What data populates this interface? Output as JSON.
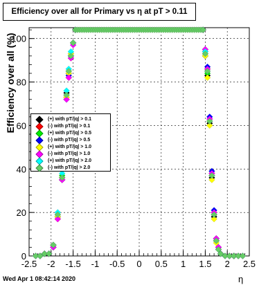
{
  "title": "Efficiency over all for Primary vs   η at pT > 0.11",
  "footer": "Wed Apr  1 08:42:14 2020",
  "chart_data": {
    "type": "scatter",
    "title": "Efficiency over all for Primary vs   η at pT > 0.11",
    "xlabel": "η",
    "ylabel": "Efficiency over all (%)",
    "xlim": [
      -2.5,
      2.5
    ],
    "ylim": [
      0,
      105
    ],
    "xticks": [
      "-2.5",
      "-2",
      "-1.5",
      "-1",
      "-0.5",
      "0",
      "0.5",
      "1",
      "1.5",
      "2",
      "2.5"
    ],
    "yticks": [
      "0",
      "20",
      "40",
      "60",
      "80",
      "100"
    ],
    "grid": true,
    "legend_position": "left-middle",
    "series": [
      {
        "name": "(+) with pT/|q| > 0.1",
        "color": "#000000",
        "x": [
          -2.35,
          -2.25,
          -2.15,
          -2.05,
          -1.95,
          -1.85,
          -1.75,
          -1.7,
          -1.65,
          -1.6,
          -1.55,
          -1.5,
          -1.45,
          1.45,
          1.5,
          1.55,
          1.6,
          1.65,
          1.7,
          1.75,
          1.8,
          1.85,
          1.95,
          2.05,
          2.15,
          2.25,
          2.35
        ],
        "y": [
          0,
          0,
          1,
          1,
          5,
          18,
          36,
          62,
          75,
          84,
          92,
          98,
          104,
          104,
          92,
          83,
          61,
          36,
          18,
          7,
          3,
          1,
          0,
          0,
          0,
          0,
          0
        ]
      },
      {
        "name": "(-) with pT/|q| > 0.1",
        "color": "#ff0000",
        "x": [
          -2.35,
          -2.25,
          -2.15,
          -2.05,
          -1.95,
          -1.85,
          -1.75,
          -1.7,
          -1.65,
          -1.6,
          -1.55,
          -1.5,
          -1.45,
          1.45,
          1.5,
          1.55,
          1.6,
          1.65,
          1.7,
          1.75,
          1.8,
          1.85,
          1.95,
          2.05,
          2.15,
          2.25,
          2.35
        ],
        "y": [
          0,
          0,
          1,
          1,
          4,
          17,
          35,
          60,
          73,
          82,
          91,
          98,
          104,
          104,
          94,
          86,
          63,
          38,
          20,
          8,
          4,
          1,
          0,
          0,
          0,
          0,
          0
        ]
      },
      {
        "name": "(+) with pT/|q| > 0.5",
        "color": "#00ee00",
        "x": [
          -2.35,
          -2.25,
          -2.15,
          -2.05,
          -1.95,
          -1.85,
          -1.75,
          -1.7,
          -1.65,
          -1.6,
          -1.55,
          -1.5,
          -1.45,
          1.45,
          1.5,
          1.55,
          1.6,
          1.65,
          1.7,
          1.75,
          1.8,
          1.85,
          1.95,
          2.05,
          2.15,
          2.25,
          2.35
        ],
        "y": [
          0,
          0,
          1,
          1,
          5,
          19,
          37,
          61,
          74,
          85,
          93,
          98,
          104,
          104,
          93,
          84,
          62,
          37,
          19,
          7,
          3,
          1,
          0,
          0,
          0,
          0,
          0
        ]
      },
      {
        "name": "(-) with pT/|q| > 0.5",
        "color": "#0000ff",
        "x": [
          -2.35,
          -2.25,
          -2.15,
          -2.05,
          -1.95,
          -1.85,
          -1.75,
          -1.7,
          -1.65,
          -1.6,
          -1.55,
          -1.5,
          -1.45,
          1.45,
          1.5,
          1.55,
          1.6,
          1.65,
          1.7,
          1.75,
          1.8,
          1.85,
          1.95,
          2.05,
          2.15,
          2.25,
          2.35
        ],
        "y": [
          0,
          0,
          1,
          1,
          4,
          18,
          35,
          60,
          72,
          83,
          92,
          98,
          104,
          104,
          95,
          87,
          64,
          39,
          21,
          8,
          4,
          1,
          0,
          0,
          0,
          0,
          0
        ]
      },
      {
        "name": "(+) with pT/|q| > 1.0",
        "color": "#ffff00",
        "x": [
          -2.35,
          -2.25,
          -2.15,
          -2.05,
          -1.95,
          -1.85,
          -1.75,
          -1.7,
          -1.65,
          -1.6,
          -1.55,
          -1.5,
          -1.45,
          1.45,
          1.5,
          1.55,
          1.6,
          1.65,
          1.7,
          1.75,
          1.8,
          1.85,
          1.95,
          2.05,
          2.15,
          2.25,
          2.35
        ],
        "y": [
          0,
          0,
          1,
          1,
          5,
          18,
          36,
          61,
          73,
          84,
          93,
          98,
          104,
          104,
          92,
          82,
          60,
          35,
          17,
          6,
          3,
          1,
          0,
          0,
          0,
          0,
          0
        ]
      },
      {
        "name": "(-) with pT/|q| > 1.0",
        "color": "#ff00ff",
        "x": [
          -2.35,
          -2.25,
          -2.15,
          -2.05,
          -1.95,
          -1.85,
          -1.75,
          -1.7,
          -1.65,
          -1.6,
          -1.55,
          -1.5,
          -1.45,
          1.45,
          1.5,
          1.55,
          1.6,
          1.65,
          1.7,
          1.75,
          1.8,
          1.85,
          1.95,
          2.05,
          2.15,
          2.25,
          2.35
        ],
        "y": [
          0,
          0,
          1,
          1,
          4,
          17,
          35,
          60,
          72,
          82,
          91,
          97,
          104,
          104,
          95,
          86,
          63,
          38,
          20,
          8,
          4,
          1,
          0,
          0,
          0,
          0,
          0
        ]
      },
      {
        "name": "(+) with pT/|q| > 2.0",
        "color": "#00ffff",
        "x": [
          -2.35,
          -2.25,
          -2.15,
          -2.05,
          -1.95,
          -1.85,
          -1.75,
          -1.7,
          -1.65,
          -1.6,
          -1.55,
          -1.5,
          -1.45,
          1.45,
          1.5,
          1.55,
          1.6,
          1.65,
          1.7,
          1.75,
          1.8,
          1.85,
          1.95,
          2.05,
          2.15,
          2.25,
          2.35
        ],
        "y": [
          0,
          0,
          1,
          1,
          5,
          20,
          38,
          62,
          76,
          86,
          94,
          98,
          104,
          104,
          94,
          85,
          62,
          37,
          19,
          7,
          3,
          1,
          0,
          0,
          0,
          0,
          0
        ]
      },
      {
        "name": "(-) with pT/|q| > 2.0",
        "color": "#66cc66",
        "x": [
          -2.35,
          -2.25,
          -2.15,
          -2.05,
          -1.95,
          -1.85,
          -1.75,
          -1.7,
          -1.65,
          -1.6,
          -1.55,
          -1.5,
          -1.45,
          -1.4,
          -1.35,
          -1.3,
          -1.25,
          -1.2,
          -1.15,
          -1.1,
          -1.05,
          -1.0,
          -0.95,
          -0.9,
          -0.85,
          -0.8,
          -0.75,
          -0.7,
          -0.65,
          -0.6,
          -0.55,
          -0.5,
          -0.45,
          -0.4,
          -0.35,
          -0.3,
          -0.25,
          -0.2,
          -0.15,
          -0.1,
          -0.05,
          0.0,
          0.05,
          0.1,
          0.15,
          0.2,
          0.25,
          0.3,
          0.35,
          0.4,
          0.45,
          0.5,
          0.55,
          0.6,
          0.65,
          0.7,
          0.75,
          0.8,
          0.85,
          0.9,
          0.95,
          1.0,
          1.05,
          1.1,
          1.15,
          1.2,
          1.25,
          1.3,
          1.35,
          1.4,
          1.45,
          1.5,
          1.55,
          1.6,
          1.65,
          1.7,
          1.75,
          1.8,
          1.85,
          1.95,
          2.05,
          2.15,
          2.25,
          2.35
        ],
        "y": [
          0,
          0,
          1,
          1,
          5,
          19,
          36,
          61,
          74,
          85,
          92,
          98,
          104,
          104,
          104,
          104,
          104,
          104,
          104,
          104,
          104,
          104,
          104,
          104,
          104,
          104,
          104,
          104,
          104,
          104,
          104,
          104,
          104,
          104,
          104,
          104,
          104,
          104,
          104,
          104,
          104,
          104,
          104,
          104,
          104,
          104,
          104,
          104,
          104,
          104,
          104,
          104,
          104,
          104,
          104,
          104,
          104,
          104,
          104,
          104,
          104,
          104,
          104,
          104,
          104,
          104,
          104,
          104,
          104,
          104,
          104,
          93,
          85,
          62,
          37,
          19,
          7,
          3,
          1,
          0,
          0,
          0,
          0,
          0
        ]
      }
    ]
  }
}
